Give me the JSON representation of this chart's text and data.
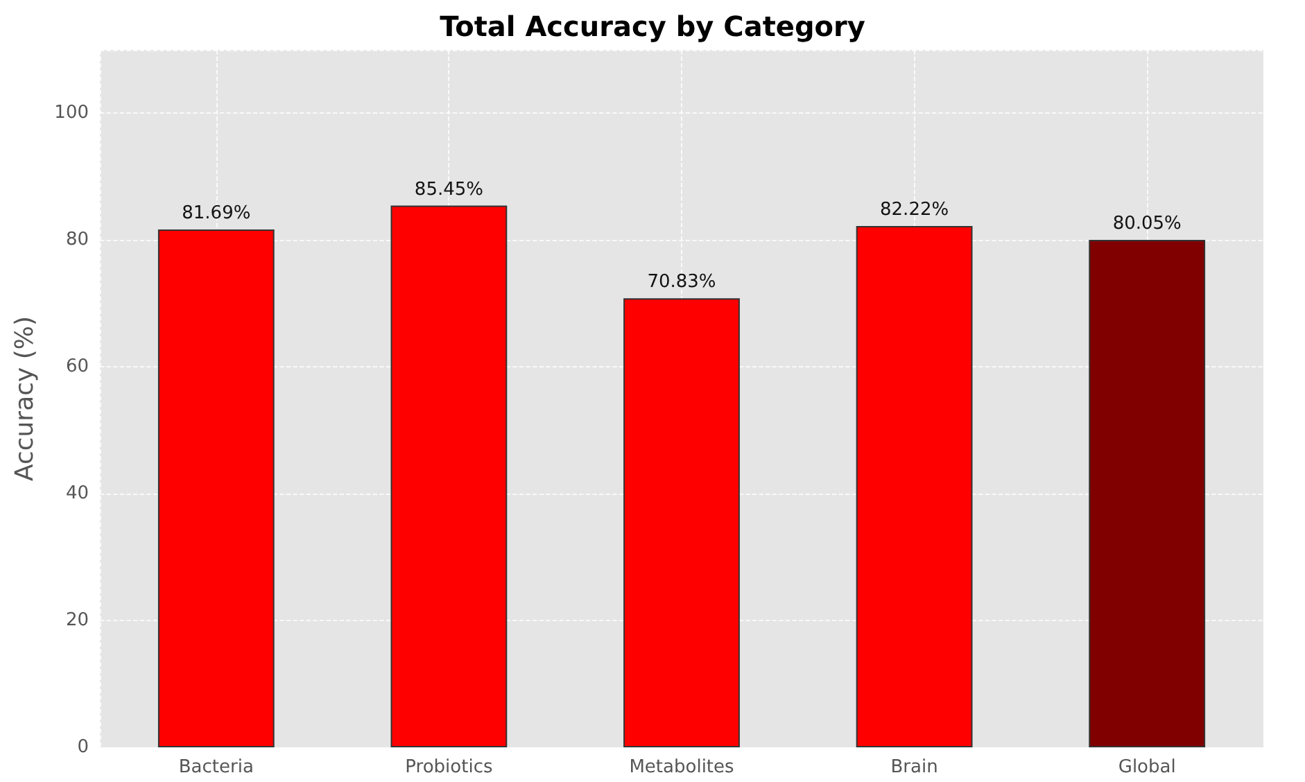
{
  "chart_data": {
    "type": "bar",
    "title": "Total Accuracy by Category",
    "ylabel": "Accuracy (%)",
    "categories": [
      "Bacteria",
      "Probiotics",
      "Metabolites",
      "Brain",
      "Global"
    ],
    "values": [
      81.69,
      85.45,
      70.83,
      82.22,
      80.05
    ],
    "colors": [
      "#ff0000",
      "#ff0000",
      "#ff0000",
      "#ff0000",
      "#800000"
    ],
    "value_labels": [
      "81.69%",
      "85.45%",
      "70.83%",
      "82.22%",
      "80.05%"
    ],
    "ylim": [
      0,
      110
    ],
    "yticks": [
      0,
      20,
      40,
      60,
      80,
      100
    ],
    "grid": true
  }
}
